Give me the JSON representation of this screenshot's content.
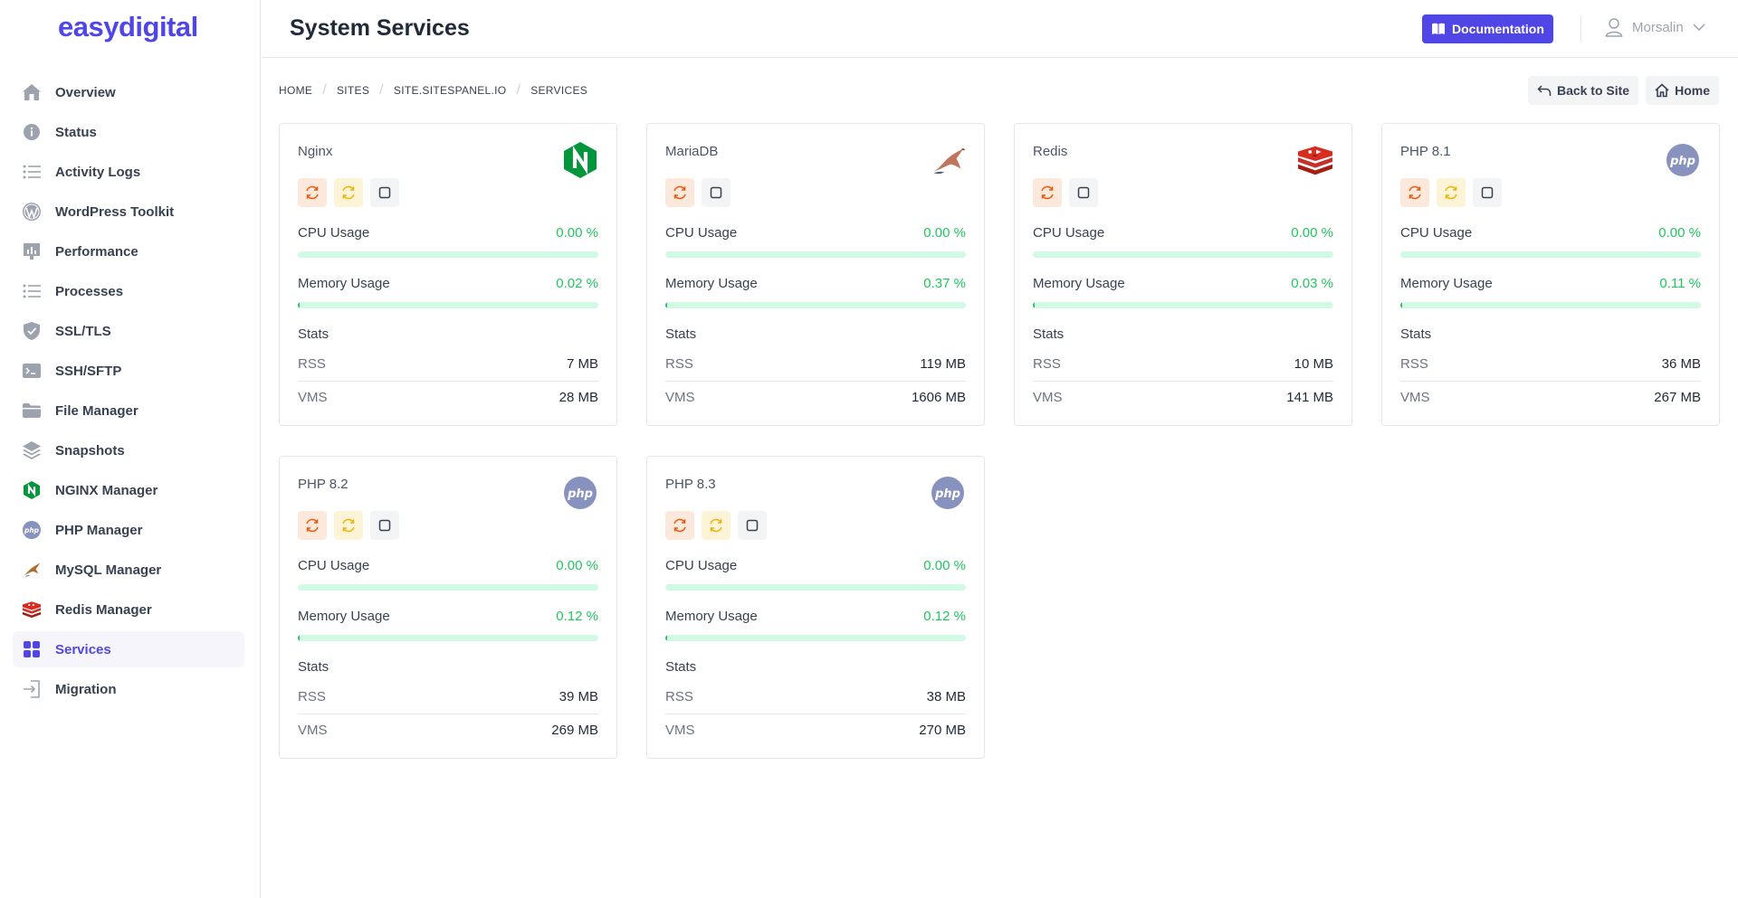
{
  "brand": {
    "logo": "easydigital",
    "accent": "#4f46e5"
  },
  "sidebar": {
    "items": [
      {
        "label": "Overview",
        "icon": "home-icon"
      },
      {
        "label": "Status",
        "icon": "info-icon"
      },
      {
        "label": "Activity Logs",
        "icon": "list-icon"
      },
      {
        "label": "WordPress Toolkit",
        "icon": "wordpress-icon"
      },
      {
        "label": "Performance",
        "icon": "chart-icon"
      },
      {
        "label": "Processes",
        "icon": "list-icon"
      },
      {
        "label": "SSL/TLS",
        "icon": "shield-icon"
      },
      {
        "label": "SSH/SFTP",
        "icon": "terminal-icon"
      },
      {
        "label": "File Manager",
        "icon": "folder-icon"
      },
      {
        "label": "Snapshots",
        "icon": "layers-icon"
      },
      {
        "label": "NGINX Manager",
        "icon": "nginx-icon"
      },
      {
        "label": "PHP Manager",
        "icon": "php-icon"
      },
      {
        "label": "MySQL Manager",
        "icon": "mysql-dolphin-icon"
      },
      {
        "label": "Redis Manager",
        "icon": "redis-icon"
      },
      {
        "label": "Services",
        "icon": "grid-icon",
        "active": true
      },
      {
        "label": "Migration",
        "icon": "migration-icon"
      }
    ]
  },
  "header": {
    "title": "System Services",
    "documentation_label": "Documentation",
    "user_name": "Morsalin"
  },
  "breadcrumb": [
    "HOME",
    "SITES",
    "SITE.SITESPANEL.IO",
    "SERVICES"
  ],
  "actions": {
    "back_label": "Back to Site",
    "home_label": "Home"
  },
  "labels": {
    "cpu": "CPU Usage",
    "memory": "Memory Usage",
    "stats": "Stats",
    "rss": "RSS",
    "vms": "VMS"
  },
  "services": [
    {
      "name": "Nginx",
      "logo": "nginx-logo-icon",
      "buttons": [
        "restart",
        "reload",
        "stop"
      ],
      "cpu": "0.00 %",
      "cpu_fraction": 0.0,
      "memory": "0.02 %",
      "memory_fraction": 0.0002,
      "rss": "7 MB",
      "vms": "28 MB"
    },
    {
      "name": "MariaDB",
      "logo": "mariadb-seal-icon",
      "buttons": [
        "restart",
        "stop"
      ],
      "cpu": "0.00 %",
      "cpu_fraction": 0.0,
      "memory": "0.37 %",
      "memory_fraction": 0.0037,
      "rss": "119 MB",
      "vms": "1606 MB"
    },
    {
      "name": "Redis",
      "logo": "redis-logo-icon",
      "buttons": [
        "restart",
        "stop"
      ],
      "cpu": "0.00 %",
      "cpu_fraction": 0.0,
      "memory": "0.03 %",
      "memory_fraction": 0.0003,
      "rss": "10 MB",
      "vms": "141 MB"
    },
    {
      "name": "PHP 8.1",
      "logo": "php-logo-icon",
      "buttons": [
        "restart",
        "reload",
        "stop"
      ],
      "cpu": "0.00 %",
      "cpu_fraction": 0.0,
      "memory": "0.11 %",
      "memory_fraction": 0.0011,
      "rss": "36 MB",
      "vms": "267 MB"
    },
    {
      "name": "PHP 8.2",
      "logo": "php-logo-icon",
      "buttons": [
        "restart",
        "reload",
        "stop"
      ],
      "cpu": "0.00 %",
      "cpu_fraction": 0.0,
      "memory": "0.12 %",
      "memory_fraction": 0.0012,
      "rss": "39 MB",
      "vms": "269 MB"
    },
    {
      "name": "PHP 8.3",
      "logo": "php-logo-icon",
      "buttons": [
        "restart",
        "reload",
        "stop"
      ],
      "cpu": "0.00 %",
      "cpu_fraction": 0.0,
      "memory": "0.12 %",
      "memory_fraction": 0.0012,
      "rss": "38 MB",
      "vms": "270 MB"
    }
  ],
  "colors": {
    "success": "#22c55e",
    "track": "#d1fae5",
    "restart_bg": "#fde8dc",
    "reload_bg": "#fdf3d6"
  }
}
